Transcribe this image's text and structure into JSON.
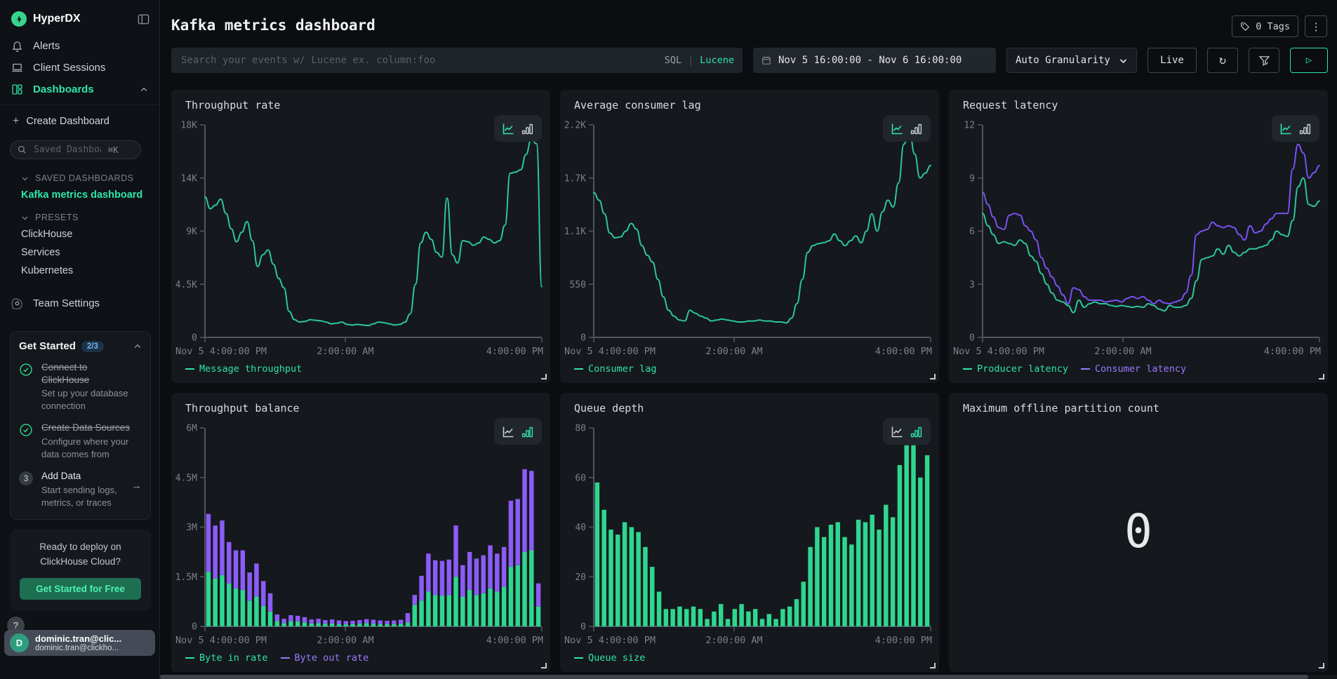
{
  "icons": {
    "refresh": "↻",
    "kebab": "⋮",
    "play": "▷",
    "help": "?",
    "arrow_right": "→",
    "plus": "+"
  },
  "colors": {
    "accent_green": "#2ee6a7",
    "line_green": "#2bc79c",
    "bar_green": "#2fd68f",
    "line_purple": "#7a52f4",
    "bar_purple": "#8b5cf6",
    "legend_purple": "#9a7bff"
  },
  "sidebar": {
    "brand": "HyperDX",
    "nav": [
      {
        "label": "Alerts"
      },
      {
        "label": "Client Sessions"
      },
      {
        "label": "Dashboards",
        "active": true
      }
    ],
    "create_dashboard_label": "Create Dashboard",
    "search": {
      "placeholder": "Saved Dashboards",
      "shortcut": "⌘K"
    },
    "saved_section": {
      "header": "SAVED DASHBOARDS",
      "items": [
        {
          "label": "Kafka metrics dashboard",
          "active": true
        }
      ]
    },
    "presets_section": {
      "header": "PRESETS",
      "items": [
        {
          "label": "ClickHouse"
        },
        {
          "label": "Services"
        },
        {
          "label": "Kubernetes"
        }
      ]
    },
    "team_settings_label": "Team Settings",
    "get_started": {
      "title": "Get Started",
      "badge": "2/3",
      "steps": [
        {
          "title": "Connect to ClickHouse",
          "desc": "Set up your database connection",
          "done": true
        },
        {
          "title": "Create Data Sources",
          "desc": "Configure where your data comes from",
          "done": true
        },
        {
          "number": "3",
          "title": "Add Data",
          "desc": "Start sending logs, metrics, or traces",
          "done": false
        }
      ]
    },
    "promo": {
      "text": "Ready to deploy on ClickHouse Cloud?",
      "button": "Get Started for Free"
    },
    "user": {
      "initial": "D",
      "name": "dominic.tran@clic...",
      "email": "dominic.tran@clickho..."
    }
  },
  "header": {
    "title": "Kafka metrics dashboard",
    "tags_label": "0 Tags"
  },
  "toolbar": {
    "search_placeholder": "Search your events w/ Lucene ex. column:foo",
    "sql": "SQL",
    "divider": "|",
    "lucene": "Lucene",
    "time_range": "Nov 5 16:00:00 - Nov 6 16:00:00",
    "granularity": "Auto Granularity",
    "live": "Live"
  },
  "chart_data": [
    {
      "type": "line",
      "title": "Throughput rate",
      "ylim": [
        0,
        18000
      ],
      "yticks": {
        "values": [
          0,
          4500,
          9000,
          13500,
          18000
        ],
        "labels": [
          "0",
          "4.5K",
          "9K",
          "14K",
          "18K"
        ]
      },
      "xticks": {
        "positions": [
          0,
          0.4167,
          1
        ],
        "labels": [
          "Nov 5 4:00:00 PM",
          "2:00:00 AM",
          "4:00:00 PM"
        ]
      },
      "series": [
        {
          "name": "Message throughput",
          "color": "#2bc79c",
          "text_color": "#2ee6a7",
          "values": [
            11900,
            10900,
            11200,
            11700,
            10500,
            9200,
            8100,
            8900,
            9800,
            8200,
            6000,
            7000,
            7400,
            6200,
            5000,
            4200,
            2200,
            1500,
            1300,
            1350,
            1500,
            1450,
            1400,
            1300,
            1150,
            1200,
            1300,
            1100,
            1050,
            1100,
            1050,
            1000,
            1150,
            1300,
            1250,
            1150,
            1050,
            1100,
            1300,
            2000,
            4500,
            8000,
            8900,
            8300,
            7200,
            6800,
            11800,
            7000,
            6300,
            8200,
            8100,
            7800,
            8000,
            8500,
            8300,
            8000,
            8200,
            9500,
            13900,
            14000,
            14200,
            15500,
            16800,
            16400,
            4300
          ]
        }
      ]
    },
    {
      "type": "line",
      "title": "Average consumer lag",
      "ylim": [
        0,
        2200
      ],
      "yticks": {
        "values": [
          0,
          550,
          1100,
          1650,
          2200
        ],
        "labels": [
          "0",
          "550",
          "1.1K",
          "1.7K",
          "2.2K"
        ]
      },
      "xticks": {
        "positions": [
          0,
          0.4167,
          1
        ],
        "labels": [
          "Nov 5 4:00:00 PM",
          "2:00:00 AM",
          "4:00:00 PM"
        ]
      },
      "series": [
        {
          "name": "Consumer lag",
          "color": "#2bc79c",
          "text_color": "#2ee6a7",
          "values": [
            1500,
            1420,
            1280,
            1080,
            1030,
            1040,
            1100,
            1180,
            1120,
            950,
            850,
            780,
            600,
            420,
            280,
            220,
            180,
            170,
            280,
            250,
            220,
            200,
            170,
            180,
            190,
            180,
            170,
            160,
            160,
            170,
            170,
            180,
            170,
            170,
            160,
            160,
            150,
            200,
            350,
            600,
            880,
            950,
            970,
            980,
            1000,
            1070,
            1000,
            950,
            1000,
            1050,
            980,
            1100,
            1280,
            1100,
            1300,
            1420,
            1350,
            1600,
            2000,
            2150,
            1900,
            1650,
            1700,
            1780
          ]
        }
      ]
    },
    {
      "type": "line",
      "title": "Request latency",
      "ylim": [
        0,
        12
      ],
      "yticks": {
        "values": [
          0,
          3,
          6,
          9,
          12
        ],
        "labels": [
          "0",
          "3",
          "6",
          "9",
          "12"
        ]
      },
      "xticks": {
        "positions": [
          0,
          0.4167,
          1
        ],
        "labels": [
          "Nov 5 4:00:00 PM",
          "2:00:00 AM",
          "4:00:00 PM"
        ]
      },
      "series": [
        {
          "name": "Producer latency",
          "color": "#2bc79c",
          "text_color": "#2ee6a7",
          "values": [
            7.0,
            6.3,
            5.8,
            5.3,
            5.4,
            5.3,
            5.2,
            5.5,
            5.3,
            4.6,
            4.3,
            3.6,
            3.0,
            2.5,
            2.1,
            2.0,
            1.8,
            1.4,
            2.1,
            1.7,
            1.9,
            2.0,
            1.9,
            1.9,
            1.8,
            1.75,
            1.8,
            1.75,
            1.7,
            1.75,
            1.7,
            1.9,
            1.8,
            1.6,
            1.5,
            1.8,
            1.7,
            1.7,
            1.8,
            2.2,
            3.2,
            4.4,
            4.5,
            4.6,
            5.0,
            4.7,
            5.2,
            4.8,
            4.6,
            4.8,
            5.0,
            5.0,
            5.1,
            5.2,
            5.5,
            6.0,
            5.8,
            5.7,
            6.6,
            8.5,
            9.0,
            7.5,
            7.4,
            7.7
          ]
        },
        {
          "name": "Consumer latency",
          "color": "#7a52f4",
          "text_color": "#9a7bff",
          "values": [
            8.2,
            7.5,
            6.8,
            6.2,
            6.1,
            6.9,
            7.0,
            6.9,
            6.3,
            6.0,
            5.5,
            4.5,
            3.9,
            3.4,
            2.9,
            2.4,
            1.9,
            2.8,
            2.7,
            2.3,
            2.1,
            2.1,
            2.1,
            2.0,
            2.05,
            2.1,
            2.0,
            2.2,
            2.3,
            2.2,
            2.3,
            2.1,
            1.9,
            2.1,
            1.95,
            1.9,
            2.0,
            2.1,
            2.5,
            3.5,
            5.8,
            6.0,
            6.1,
            6.5,
            6.3,
            6.2,
            6.3,
            6.2,
            5.8,
            5.5,
            6.3,
            5.9,
            6.0,
            6.4,
            6.7,
            7.0,
            7.0,
            7.0,
            9.5,
            10.9,
            10.4,
            9.0,
            9.3,
            9.7
          ]
        }
      ]
    },
    {
      "type": "bar",
      "stacked": true,
      "title": "Throughput balance",
      "ylim": [
        0,
        6
      ],
      "unit": "M",
      "yticks": {
        "values": [
          0,
          1.5,
          3,
          4.5,
          6
        ],
        "labels": [
          "0",
          "1.5M",
          "3M",
          "4.5M",
          "6M"
        ]
      },
      "xticks": {
        "positions": [
          0,
          0.4167,
          1
        ],
        "labels": [
          "Nov 5 4:00:00 PM",
          "2:00:00 AM",
          "4:00:00 PM"
        ]
      },
      "series": [
        {
          "name": "Byte in rate",
          "color": "#2fd68f",
          "text_color": "#2ee6a7",
          "values": [
            1.65,
            1.45,
            1.55,
            1.3,
            1.15,
            1.1,
            0.78,
            0.9,
            0.62,
            0.45,
            0.16,
            0.1,
            0.16,
            0.15,
            0.12,
            0.09,
            0.1,
            0.08,
            0.09,
            0.07,
            0.06,
            0.07,
            0.08,
            0.1,
            0.08,
            0.07,
            0.07,
            0.07,
            0.08,
            0.12,
            0.65,
            0.78,
            1.05,
            0.95,
            0.93,
            0.95,
            1.5,
            0.9,
            1.1,
            0.95,
            1.0,
            1.15,
            1.05,
            1.2,
            1.8,
            1.85,
            2.25,
            2.3,
            0.6
          ]
        },
        {
          "name": "Byte out rate",
          "color": "#8b5cf6",
          "text_color": "#9a7bff",
          "values": [
            1.75,
            1.6,
            1.65,
            1.25,
            1.15,
            1.2,
            0.85,
            1.0,
            0.75,
            0.55,
            0.2,
            0.13,
            0.18,
            0.17,
            0.16,
            0.12,
            0.13,
            0.11,
            0.12,
            0.11,
            0.1,
            0.1,
            0.11,
            0.12,
            0.12,
            0.11,
            0.1,
            0.11,
            0.12,
            0.28,
            0.3,
            0.75,
            1.15,
            1.05,
            1.05,
            1.07,
            1.55,
            0.95,
            1.15,
            1.1,
            1.15,
            1.3,
            1.15,
            1.2,
            2.0,
            2.0,
            2.5,
            2.4,
            0.7
          ]
        }
      ]
    },
    {
      "type": "bar",
      "stacked": false,
      "title": "Queue depth",
      "ylim": [
        0,
        80
      ],
      "yticks": {
        "values": [
          0,
          20,
          40,
          60,
          80
        ],
        "labels": [
          "0",
          "20",
          "40",
          "60",
          "80"
        ]
      },
      "xticks": {
        "positions": [
          0,
          0.4167,
          1
        ],
        "labels": [
          "Nov 5 4:00:00 PM",
          "2:00:00 AM",
          "4:00:00 PM"
        ]
      },
      "series": [
        {
          "name": "Queue size",
          "color": "#2fd68f",
          "text_color": "#2ee6a7",
          "values": [
            58,
            47,
            39,
            37,
            42,
            40,
            38,
            32,
            24,
            14,
            7,
            7,
            8,
            7,
            8,
            7,
            3,
            6,
            9,
            3,
            7,
            9,
            6,
            7,
            3,
            5,
            3,
            7,
            8,
            11,
            18,
            32,
            40,
            36,
            41,
            42,
            36,
            33,
            43,
            42,
            45,
            39,
            49,
            44,
            65,
            73,
            73,
            60,
            69
          ]
        }
      ]
    },
    {
      "type": "number",
      "title": "Maximum offline partition count",
      "value": "0"
    }
  ]
}
